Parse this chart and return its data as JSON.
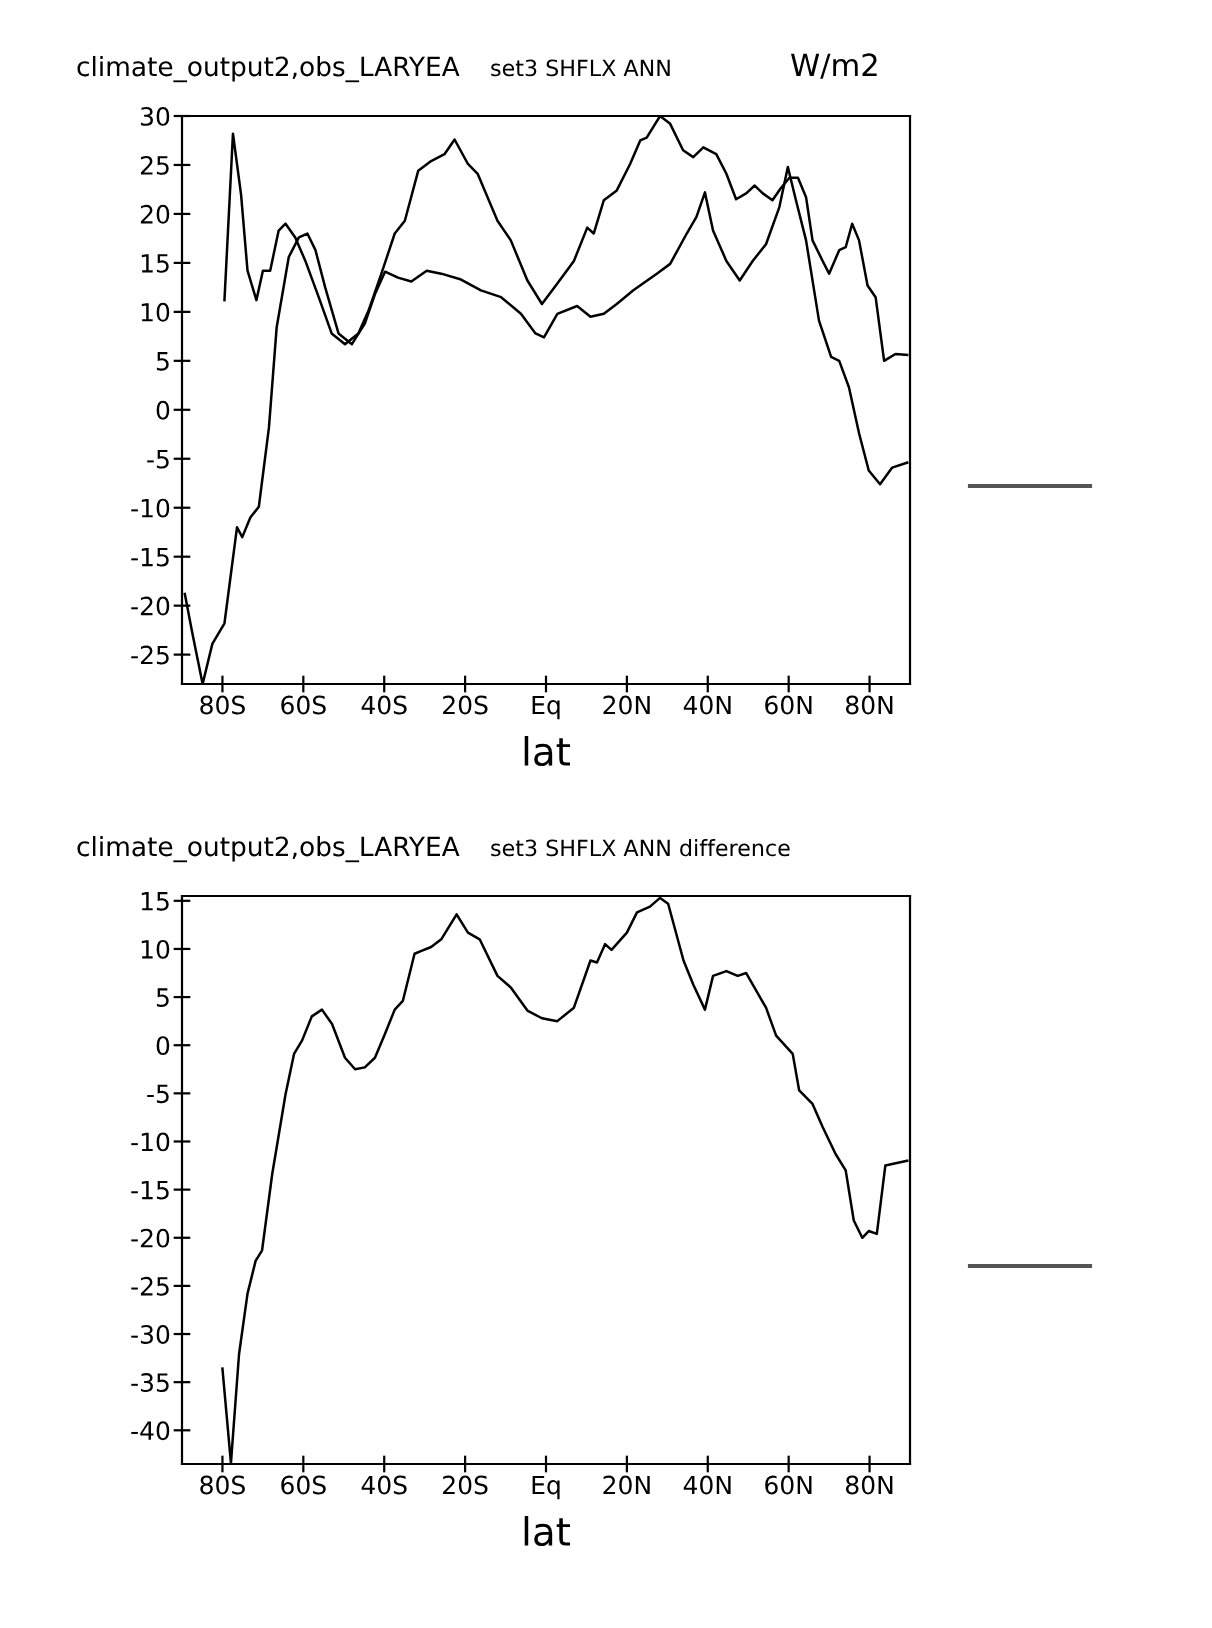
{
  "chart_data": [
    {
      "type": "line",
      "title": "climate_output2,obs_LARYEA",
      "subtitle": "set3 SHFLX ANN",
      "annotations": [
        "W/m2"
      ],
      "xlabel": "lat",
      "xlim": [
        -90,
        90
      ],
      "xticks": [
        {
          "value": -80,
          "label": "80S"
        },
        {
          "value": -60,
          "label": "60S"
        },
        {
          "value": -40,
          "label": "40S"
        },
        {
          "value": -20,
          "label": "20S"
        },
        {
          "value": 0,
          "label": "Eq"
        },
        {
          "value": 20,
          "label": "20N"
        },
        {
          "value": 40,
          "label": "40N"
        },
        {
          "value": 60,
          "label": "60N"
        },
        {
          "value": 80,
          "label": "80N"
        }
      ],
      "ylim": [
        -28,
        30
      ],
      "yticks": [
        -25,
        -20,
        -15,
        -10,
        -5,
        0,
        5,
        10,
        15,
        20,
        25,
        30
      ],
      "grid": false,
      "legend": false,
      "series": [
        {
          "color": "#000000",
          "x": [
            -79.5,
            -77.4,
            -75.4,
            -73.8,
            -71.6,
            -70,
            -68.2,
            -66.1,
            -64.4,
            -62,
            -59.5,
            -56.2,
            -53,
            -49.7,
            -46.4,
            -43.9,
            -40.7,
            -37.4,
            -34.9,
            -31.6,
            -28.4,
            -25.1,
            -22.6,
            -19.3,
            -16.9,
            -12,
            -8.7,
            -4.6,
            -1,
            2.8,
            6.9,
            10.2,
            11.8,
            14.3,
            17.5,
            20.8,
            23.3,
            24.9,
            28.2,
            30.7,
            33.9,
            36.4,
            38.9,
            42.1,
            44.6,
            47,
            49.5,
            51.6,
            53.6,
            56,
            58,
            60.2,
            62.3,
            64.3,
            65.9,
            68.4,
            70,
            72.5,
            74.1,
            75.7,
            77.4,
            79.5,
            81.5,
            83.6,
            86.4,
            89.3
          ],
          "values": [
            11.2,
            28.2,
            22,
            14.2,
            11.2,
            14.2,
            14.2,
            18.3,
            19,
            17.6,
            15.2,
            11.5,
            7.8,
            6.7,
            7.8,
            10.1,
            13.9,
            18,
            19.3,
            24.4,
            25.4,
            26.1,
            27.6,
            25.1,
            24.1,
            19.3,
            17.3,
            13.2,
            10.8,
            12.9,
            15.2,
            18.6,
            18,
            21.4,
            22.4,
            25.1,
            27.5,
            27.8,
            30,
            29.2,
            26.5,
            25.8,
            26.8,
            26.1,
            24.1,
            21.5,
            22.1,
            22.9,
            22.1,
            21.4,
            22.6,
            23.7,
            23.7,
            21.7,
            17.3,
            15.2,
            13.9,
            16.3,
            16.6,
            19,
            17.3,
            12.7,
            11.5,
            5,
            5.7,
            5.6
          ]
        },
        {
          "color": "#000000",
          "x": [
            -89.3,
            -87.4,
            -84.9,
            -82.5,
            -79.5,
            -76.4,
            -75.1,
            -73.1,
            -71,
            -68.5,
            -66.6,
            -63.6,
            -61.1,
            -59,
            -57,
            -54.6,
            -51.3,
            -48,
            -44.8,
            -42.3,
            -39.8,
            -36.6,
            -33.3,
            -29.5,
            -25.9,
            -21,
            -16.1,
            -11.1,
            -6.2,
            -2.6,
            -0.5,
            2.8,
            7.7,
            11,
            14.3,
            17.5,
            21.6,
            27.4,
            30.7,
            34.8,
            37.2,
            39.3,
            41.3,
            44.6,
            47.9,
            51.1,
            54.4,
            57.7,
            59.8,
            61.8,
            64.3,
            67.5,
            70.5,
            72.5,
            74.9,
            77.4,
            79.8,
            82.6,
            85.6,
            89.3
          ],
          "values": [
            -18.8,
            -22.9,
            -28,
            -23.9,
            -21.8,
            -12,
            -13,
            -11,
            -9.9,
            -1.8,
            8.4,
            15.6,
            17.6,
            18,
            16.3,
            12.5,
            7.8,
            6.7,
            8.8,
            11.8,
            14.1,
            13.5,
            13.1,
            14.2,
            13.9,
            13.3,
            12.2,
            11.5,
            9.8,
            7.8,
            7.4,
            9.8,
            10.6,
            9.5,
            9.8,
            10.8,
            12.2,
            13.9,
            14.9,
            18,
            19.7,
            22.2,
            18.3,
            15.2,
            13.2,
            15.2,
            16.9,
            20.7,
            24.8,
            21.4,
            17.3,
            9.1,
            5.4,
            5,
            2.3,
            -2.4,
            -6.2,
            -7.6,
            -5.9,
            -5.4
          ]
        }
      ]
    },
    {
      "type": "line",
      "title": "climate_output2,obs_LARYEA",
      "subtitle": "set3 SHFLX ANN difference",
      "xlabel": "lat",
      "xlim": [
        -90,
        90
      ],
      "xticks": [
        {
          "value": -80,
          "label": "80S"
        },
        {
          "value": -60,
          "label": "60S"
        },
        {
          "value": -40,
          "label": "40S"
        },
        {
          "value": -20,
          "label": "20S"
        },
        {
          "value": 0,
          "label": "Eq"
        },
        {
          "value": 20,
          "label": "20N"
        },
        {
          "value": 40,
          "label": "40N"
        },
        {
          "value": 60,
          "label": "60N"
        },
        {
          "value": 80,
          "label": "80N"
        }
      ],
      "ylim": [
        -43.5,
        15.5
      ],
      "yticks": [
        -40,
        -35,
        -30,
        -25,
        -20,
        -15,
        -10,
        -5,
        0,
        5,
        10,
        15
      ],
      "grid": false,
      "legend": false,
      "series": [
        {
          "color": "#000000",
          "x": [
            -80,
            -77.9,
            -75.9,
            -73.8,
            -71.8,
            -70.2,
            -67.7,
            -64.4,
            -62.3,
            -60.3,
            -57.9,
            -55.4,
            -52.9,
            -49.7,
            -47.2,
            -44.8,
            -42.3,
            -39.8,
            -37.4,
            -35.4,
            -32.5,
            -30.8,
            -28.4,
            -25.9,
            -22.1,
            -19.3,
            -16.4,
            -12,
            -8.7,
            -4.6,
            -1,
            2.8,
            6.9,
            11,
            12.6,
            14.6,
            16.2,
            20,
            22.5,
            25.7,
            28.2,
            30.2,
            34,
            36.4,
            39.3,
            41.3,
            44.6,
            47.4,
            49.5,
            54.4,
            56.9,
            61,
            62.6,
            65.9,
            68.4,
            71.6,
            74.1,
            76.1,
            78.2,
            79.8,
            81.8,
            83.9,
            89.3
          ],
          "values": [
            -33.6,
            -43.4,
            -32.1,
            -25.8,
            -22.4,
            -21.3,
            -13.4,
            -5.1,
            -0.9,
            0.5,
            3,
            3.7,
            2.2,
            -1.3,
            -2.5,
            -2.3,
            -1.3,
            1.2,
            3.7,
            4.6,
            9.5,
            9.8,
            10.2,
            11,
            13.6,
            11.7,
            11,
            7.2,
            6,
            3.6,
            2.8,
            2.5,
            3.9,
            8.8,
            8.6,
            10.5,
            9.9,
            11.7,
            13.8,
            14.4,
            15.3,
            14.7,
            8.8,
            6.3,
            3.7,
            7.2,
            7.7,
            7.2,
            7.5,
            3.9,
            1,
            -0.9,
            -4.7,
            -6.1,
            -8.5,
            -11.3,
            -13,
            -18.2,
            -20,
            -19.3,
            -19.6,
            -12.5,
            -12
          ]
        }
      ]
    }
  ]
}
